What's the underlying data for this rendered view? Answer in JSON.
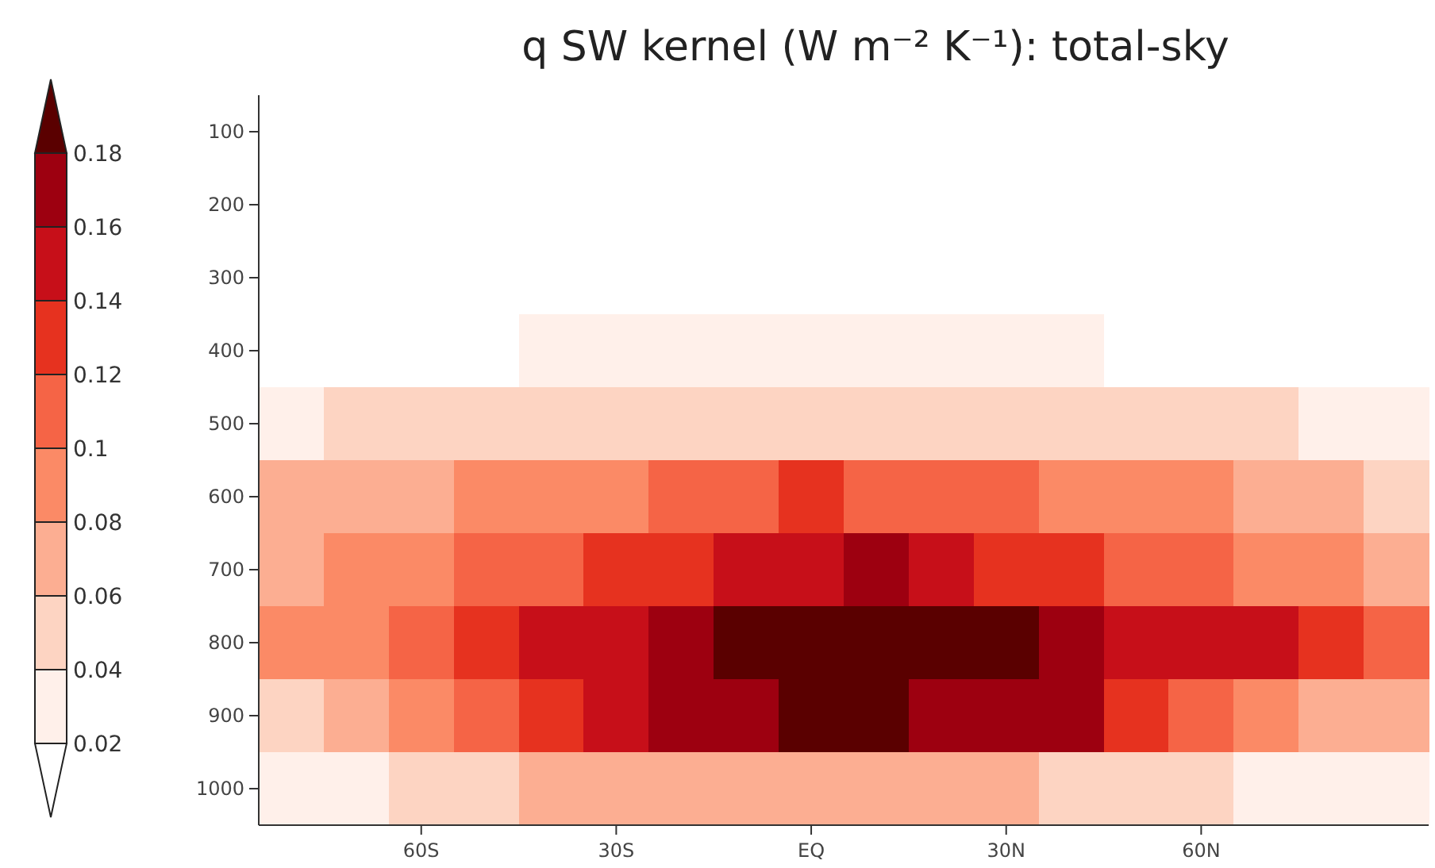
{
  "chart_data": {
    "type": "heatmap",
    "title": "q SW kernel (W m⁻² K⁻¹): total-sky",
    "categories": [
      null,
      null,
      "60S",
      null,
      null,
      "30S",
      null,
      null,
      "EQ",
      null,
      null,
      "30N",
      null,
      null,
      "60N",
      null,
      null,
      null
    ],
    "y_categories": [
      "100",
      "200",
      "300",
      "400",
      "500",
      "600",
      "700",
      "800",
      "900",
      "1000"
    ],
    "cells": [
      [
        0.01,
        0.01,
        0.01,
        0.01,
        0.01,
        0.01,
        0.01,
        0.01,
        0.01,
        0.01,
        0.01,
        0.01,
        0.01,
        0.01,
        0.01,
        0.01,
        0.01,
        0.01
      ],
      [
        0.01,
        0.01,
        0.01,
        0.01,
        0.01,
        0.01,
        0.01,
        0.01,
        0.01,
        0.01,
        0.01,
        0.01,
        0.01,
        0.01,
        0.01,
        0.01,
        0.01,
        0.01
      ],
      [
        0.01,
        0.01,
        0.01,
        0.01,
        0.01,
        0.01,
        0.01,
        0.01,
        0.01,
        0.01,
        0.01,
        0.01,
        0.01,
        0.01,
        0.01,
        0.01,
        0.01,
        0.01
      ],
      [
        0.01,
        0.01,
        0.01,
        0.01,
        0.03,
        0.03,
        0.03,
        0.03,
        0.03,
        0.03,
        0.03,
        0.03,
        0.03,
        0.01,
        0.01,
        0.01,
        0.01,
        0.01
      ],
      [
        0.03,
        0.05,
        0.05,
        0.05,
        0.05,
        0.05,
        0.05,
        0.05,
        0.05,
        0.05,
        0.05,
        0.05,
        0.05,
        0.05,
        0.05,
        0.05,
        0.03,
        0.03
      ],
      [
        0.07,
        0.07,
        0.07,
        0.09,
        0.09,
        0.09,
        0.11,
        0.11,
        0.13,
        0.11,
        0.11,
        0.11,
        0.09,
        0.09,
        0.09,
        0.07,
        0.07,
        0.05
      ],
      [
        0.07,
        0.09,
        0.09,
        0.11,
        0.11,
        0.13,
        0.13,
        0.15,
        0.15,
        0.17,
        0.15,
        0.13,
        0.13,
        0.11,
        0.11,
        0.09,
        0.09,
        0.07
      ],
      [
        0.09,
        0.09,
        0.11,
        0.13,
        0.15,
        0.15,
        0.17,
        0.19,
        0.19,
        0.19,
        0.19,
        0.19,
        0.17,
        0.15,
        0.15,
        0.15,
        0.13,
        0.11
      ],
      [
        0.05,
        0.07,
        0.09,
        0.11,
        0.13,
        0.15,
        0.17,
        0.17,
        0.19,
        0.19,
        0.17,
        0.17,
        0.17,
        0.13,
        0.11,
        0.09,
        0.07,
        0.07
      ],
      [
        0.03,
        0.03,
        0.04,
        0.05,
        0.07,
        0.07,
        0.07,
        0.07,
        0.07,
        0.07,
        0.07,
        0.07,
        0.05,
        0.05,
        0.05,
        0.03,
        0.03,
        0.03
      ]
    ],
    "clim": [
      0,
      0.2
    ],
    "cticks": [
      0.02,
      0.04,
      0.06,
      0.08,
      0.1,
      0.12,
      0.14,
      0.16,
      0.18
    ],
    "colors": [
      "#ffffff",
      "#fff0ea",
      "#fdd4c2",
      "#fcae92",
      "#fb8a66",
      "#f56446",
      "#e6321f",
      "#c70f19",
      "#9d0010",
      "#5a0000"
    ]
  }
}
